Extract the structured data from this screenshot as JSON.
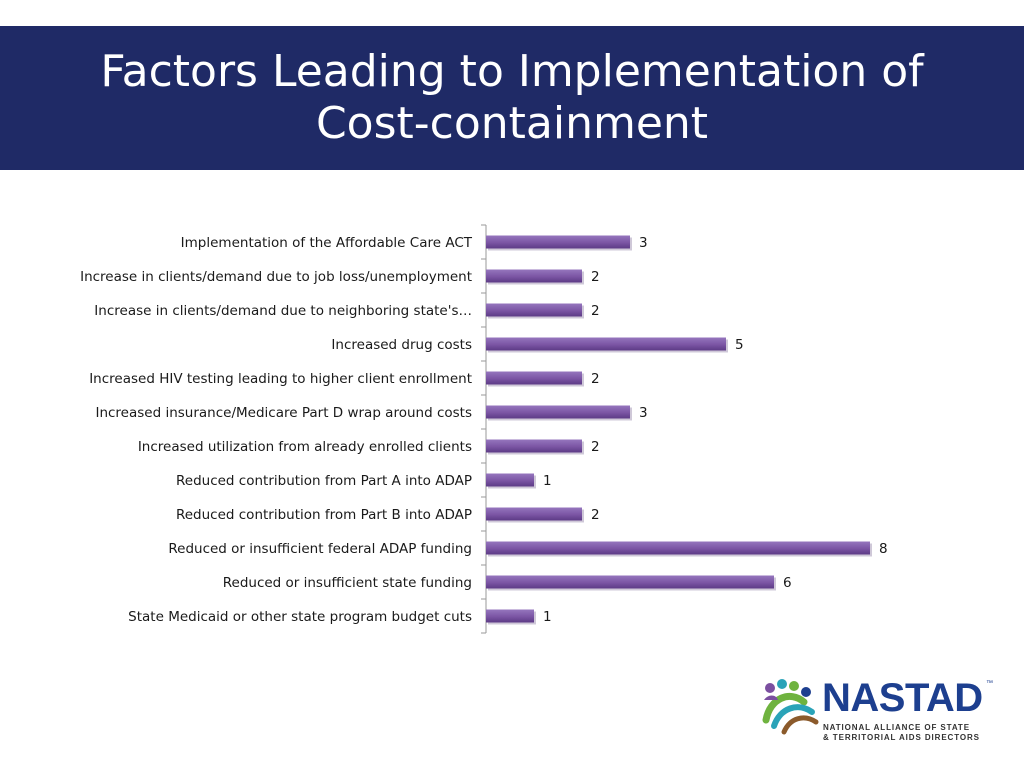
{
  "header": {
    "title": "Factors Leading to Implementation of\nCost-containment"
  },
  "chart_data": {
    "type": "bar",
    "orientation": "horizontal",
    "title": "",
    "xlabel": "",
    "ylabel": "",
    "categories": [
      "Implementation of the Affordable Care ACT",
      "Increase in clients/demand due to job loss/unemployment",
      "Increase in clients/demand due to neighboring state's…",
      "Increased drug costs",
      "Increased HIV testing leading to higher client enrollment",
      "Increased insurance/Medicare Part D wrap around costs",
      "Increased utilization from already enrolled clients",
      "Reduced contribution from Part A into ADAP",
      "Reduced contribution from Part B into ADAP",
      "Reduced or insufficient federal ADAP funding",
      "Reduced or insufficient state funding",
      "State Medicaid or other state program budget cuts"
    ],
    "values": [
      3,
      2,
      2,
      5,
      2,
      3,
      2,
      1,
      2,
      8,
      6,
      1
    ],
    "xlim": [
      0,
      8
    ],
    "grid": false,
    "legend": "none",
    "data_labels": true,
    "bar_color": "#7b55a4"
  },
  "logo": {
    "wordmark": "NASTAD",
    "trademark": "™",
    "subtitle_line1": "NATIONAL ALLIANCE OF STATE",
    "subtitle_line2": "& TERRITORIAL AIDS DIRECTORS",
    "colors": {
      "navy": "#1d3f8f",
      "green": "#6fb33f",
      "purple": "#7b4fa0",
      "teal": "#2aa3b8",
      "brown": "#8b5a2b"
    }
  },
  "colors": {
    "title_band": "#1f2a66",
    "title_text": "#ffffff",
    "axis": "#9a9a9a"
  }
}
